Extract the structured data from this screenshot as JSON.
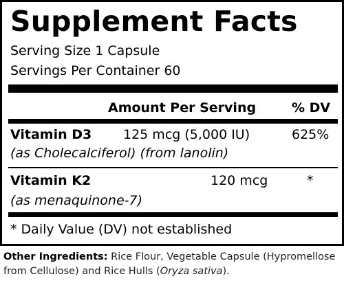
{
  "title": "Supplement Facts",
  "serving_size": "Serving Size 1 Capsule",
  "servings_per_container": "Servings Per Container 60",
  "header": {
    "amount": "Amount Per Serving",
    "dv": "% DV"
  },
  "nutrients": [
    {
      "name": "Vitamin D3",
      "amount": "125 mcg (5,000 IU)",
      "dv": "625%",
      "source": "(as Cholecalciferol) (from lanolin)"
    },
    {
      "name": "Vitamin K2",
      "amount": "120 mcg",
      "dv": "*",
      "source": "(as menaquinone-7)"
    }
  ],
  "footnote": "* Daily Value (DV) not established",
  "other_ingredients": {
    "label": "Other Ingredients:",
    "text_before": " Rice Flour, Vegetable Capsule (Hypromellose from Cellulose) and Rice Hulls (",
    "italic": "Oryza sativa",
    "text_after": ")."
  }
}
